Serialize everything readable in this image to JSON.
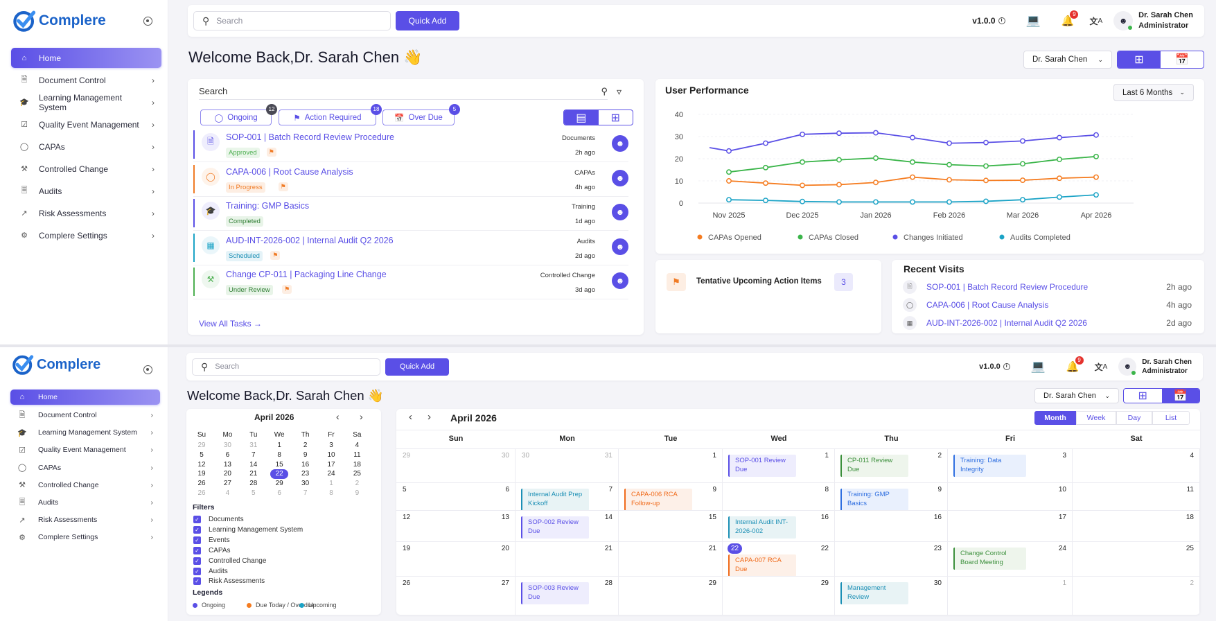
{
  "app": {
    "name": "Complere",
    "brand_color": "#1b63c9",
    "accent": "#5a4fe6"
  },
  "header": {
    "search_placeholder": "Search",
    "quick_add": "Quick Add",
    "version": "v1.0.0",
    "notifications": "9",
    "user_name": "Dr. Sarah Chen",
    "user_role": "Administrator",
    "icons": [
      "search-icon",
      "info-icon",
      "laptop-icon",
      "bell-icon",
      "translate-icon",
      "user-icon"
    ]
  },
  "sidebar": {
    "items": [
      {
        "label": "Home",
        "icon": "home-icon",
        "active": true
      },
      {
        "label": "Document Control",
        "icon": "document-icon"
      },
      {
        "label": "Learning Management System",
        "icon": "graduation-cap-icon"
      },
      {
        "label": "Quality Event Management",
        "icon": "calendar-check-icon"
      },
      {
        "label": "CAPAs",
        "icon": "shield-icon"
      },
      {
        "label": "Controlled Change",
        "icon": "tools-icon"
      },
      {
        "label": "Audits",
        "icon": "audit-file-icon"
      },
      {
        "label": "Risk Assessments",
        "icon": "chart-icon"
      },
      {
        "label": "Complere Settings",
        "icon": "gear-icon"
      }
    ]
  },
  "welcome": "Welcome Back,Dr. Sarah Chen 👋",
  "user_select": "Dr. Sarah Chen",
  "tasks": {
    "search_label": "Search",
    "chips": [
      {
        "label": "Ongoing",
        "count": "12",
        "color": "#4a4a55"
      },
      {
        "label": "Action Required",
        "count": "18",
        "color": "#5a4fe6"
      },
      {
        "label": "Over Due",
        "count": "5",
        "color": "#5a4fe6"
      }
    ],
    "rows": [
      {
        "title": "SOP-001 | Batch Record Review Procedure",
        "category": "Documents",
        "time": "2h ago",
        "status": "Approved",
        "status_color": "#4caf50",
        "status_bg": "#eaf6ea",
        "flag": true,
        "bar": "#5a4fe6",
        "icon": "document-icon"
      },
      {
        "title": "CAPA-006 | Root Cause Analysis",
        "category": "CAPAs",
        "time": "4h ago",
        "status": "In Progress",
        "status_color": "#f07b25",
        "status_bg": "#fdeee3",
        "flag": true,
        "bar": "#f07b25",
        "icon": "shield-icon"
      },
      {
        "title": "Training: GMP Basics",
        "category": "Training",
        "time": "1d ago",
        "status": "Completed",
        "status_color": "#2e7d32",
        "status_bg": "#e8f4e8",
        "flag": false,
        "bar": "#5a4fe6",
        "icon": "graduation-cap-icon"
      },
      {
        "title": "AUD-INT-2026-002 | Internal Audit Q2 2026",
        "category": "Audits",
        "time": "2d ago",
        "status": "Scheduled",
        "status_color": "#1b8fb5",
        "status_bg": "#e5f3f8",
        "flag": true,
        "bar": "#1ba3c6",
        "icon": "calendar-icon"
      },
      {
        "title": "Change CP-011 | Packaging Line Change",
        "category": "Controlled Change",
        "time": "3d ago",
        "status": "Under Review",
        "status_color": "#2e7d32",
        "status_bg": "#e8f4e8",
        "flag": true,
        "bar": "#4caf50",
        "icon": "tools-icon"
      }
    ],
    "view_all": "View All Tasks →"
  },
  "performance": {
    "title": "User Performance",
    "range": "Last 6 Months"
  },
  "chart_data": {
    "type": "line",
    "title": "User Performance",
    "x": [
      "Nov 2025",
      "",
      "Dec 2025",
      "",
      "Jan 2026",
      "",
      "Feb 2026",
      "",
      "Mar 2026",
      "",
      "Apr 2026"
    ],
    "ylim": [
      0,
      40
    ],
    "yticks": [
      0,
      10,
      20,
      30,
      40
    ],
    "grid": true,
    "legend": "bottom",
    "series": [
      {
        "name": "CAPAs Opened",
        "color": "#f57c20",
        "values": [
          10,
          9,
          8,
          8.3,
          9.3,
          11.7,
          10.5,
          10.2,
          10.3,
          11.2,
          11.7
        ]
      },
      {
        "name": "CAPAs Closed",
        "color": "#3bb54a",
        "values": [
          14,
          16,
          18.5,
          19.5,
          20.3,
          18.5,
          17.3,
          16.7,
          17.7,
          19.7,
          21
        ]
      },
      {
        "name": "Changes Initiated",
        "color": "#5a4fe6",
        "values": [
          23.5,
          27,
          31,
          31.5,
          31.7,
          29.5,
          27,
          27.3,
          28,
          29.5,
          30.7
        ]
      },
      {
        "name": "Audits Completed",
        "color": "#1ba3c6",
        "values": [
          1.5,
          1.2,
          0.7,
          0.5,
          0.5,
          0.5,
          0.5,
          0.8,
          1.5,
          2.7,
          3.7
        ]
      }
    ]
  },
  "tentative": {
    "label": "Tentative Upcoming Action Items",
    "count": "3"
  },
  "recent": {
    "title": "Recent Visits",
    "items": [
      {
        "title": "SOP-001 | Batch Record Review Procedure",
        "time": "2h ago",
        "icon": "document-icon"
      },
      {
        "title": "CAPA-006 | Root Cause Analysis",
        "time": "4h ago",
        "icon": "shield-icon"
      },
      {
        "title": "AUD-INT-2026-002 | Internal Audit Q2 2026",
        "time": "2d ago",
        "icon": "calendar-icon"
      }
    ]
  },
  "mini_calendar": {
    "title": "April 2026",
    "weekdays": [
      "Su",
      "Mo",
      "Tu",
      "We",
      "Th",
      "Fr",
      "Sa"
    ],
    "weeks": [
      [
        [
          "29",
          1
        ],
        [
          "30",
          1
        ],
        [
          "31",
          1
        ],
        [
          "1",
          0
        ],
        [
          "2",
          0
        ],
        [
          "3",
          0
        ],
        [
          "4",
          0
        ]
      ],
      [
        [
          "5",
          0
        ],
        [
          "6",
          0
        ],
        [
          "7",
          0
        ],
        [
          "8",
          0
        ],
        [
          "9",
          0
        ],
        [
          "10",
          0
        ],
        [
          "11",
          0
        ]
      ],
      [
        [
          "12",
          0
        ],
        [
          "13",
          0
        ],
        [
          "14",
          0
        ],
        [
          "15",
          0
        ],
        [
          "16",
          0
        ],
        [
          "17",
          0
        ],
        [
          "18",
          0
        ]
      ],
      [
        [
          "19",
          0
        ],
        [
          "20",
          0
        ],
        [
          "21",
          0
        ],
        [
          "22",
          2
        ],
        [
          "23",
          0
        ],
        [
          "24",
          0
        ],
        [
          "25",
          0
        ]
      ],
      [
        [
          "26",
          0
        ],
        [
          "27",
          0
        ],
        [
          "28",
          0
        ],
        [
          "29",
          0
        ],
        [
          "30",
          0
        ],
        [
          "1",
          1
        ],
        [
          "2",
          1
        ]
      ],
      [
        [
          "26",
          1
        ],
        [
          "4",
          1
        ],
        [
          "5",
          1
        ],
        [
          "6",
          1
        ],
        [
          "7",
          1
        ],
        [
          "8",
          1
        ],
        [
          "9",
          1
        ]
      ]
    ],
    "filters_title": "Filters",
    "filters": [
      "Documents",
      "Learning Management System",
      "Events",
      "CAPAs",
      "Controlled Change",
      "Audits",
      "Risk Assessments"
    ],
    "legends_title": "Legends",
    "legends": [
      {
        "label": "Ongoing",
        "color": "#5a4fe6"
      },
      {
        "label": "Due Today / Overdue",
        "color": "#f57c20"
      },
      {
        "label": "Upcoming",
        "color": "#1ba3c6"
      }
    ]
  },
  "calendar": {
    "title": "April 2026",
    "views": [
      "Month",
      "Week",
      "Day",
      "List"
    ],
    "active_view": "Month",
    "days": [
      "Sun",
      "Mon",
      "Tue",
      "Wed",
      "Thu",
      "Fri",
      "Sat"
    ],
    "event_styles": {
      "purple": {
        "fg": "#5a4fe6",
        "bg": "#eeedfd"
      },
      "green": {
        "fg": "#3b8f3b",
        "bg": "#eef5ec"
      },
      "blue": {
        "fg": "#2f6fe0",
        "bg": "#e9f0fd"
      },
      "teal": {
        "fg": "#1b8fb5",
        "bg": "#e8f3f5"
      },
      "orange": {
        "fg": "#f06a1a",
        "bg": "#fdf0e8"
      }
    },
    "weeks": [
      [
        {
          "l": "29",
          "r": "30",
          "m": true
        },
        {
          "l": "30",
          "r": "31",
          "m": true
        },
        {
          "r": "1"
        },
        {
          "r": "1",
          "ev": [
            "SOP-001 Review Due",
            "purple"
          ]
        },
        {
          "r": "2",
          "ev": [
            "CP-011 Review Due",
            "green"
          ]
        },
        {
          "r": "3",
          "ev": [
            "Training: Data Integrity",
            "blue"
          ]
        },
        {
          "r": "4"
        }
      ],
      [
        {
          "l": "5",
          "r": "6"
        },
        {
          "r": "7",
          "ev": [
            "Internal Audit Prep Kickoff",
            "teal"
          ]
        },
        {
          "r": "9",
          "ev": [
            "CAPA-006 RCA Follow-up",
            "orange"
          ]
        },
        {
          "r": "8"
        },
        {
          "r": "9",
          "ev": [
            "Training: GMP Basics",
            "blue"
          ]
        },
        {
          "r": "10"
        },
        {
          "r": "11"
        }
      ],
      [
        {
          "l": "12",
          "r": "13"
        },
        {
          "r": "14",
          "ev": [
            "SOP-002 Review Due",
            "purple"
          ]
        },
        {
          "r": "15"
        },
        {
          "r": "16",
          "ev": [
            "Internal Audit INT-2026-002",
            "teal"
          ]
        },
        {
          "r": "16"
        },
        {
          "r": "17"
        },
        {
          "r": "18"
        }
      ],
      [
        {
          "l": "19",
          "r": "20"
        },
        {
          "r": "21"
        },
        {
          "r": "21"
        },
        {
          "b": "22",
          "r": "22",
          "ev": [
            "CAPA-007 RCA Due",
            "orange"
          ]
        },
        {
          "r": "23"
        },
        {
          "r": "24",
          "ev": [
            "Change Control Board Meeting",
            "green"
          ]
        },
        {
          "r": "25"
        }
      ],
      [
        {
          "l": "26",
          "r": "27"
        },
        {
          "r": "28",
          "ev": [
            "SOP-003 Review Due",
            "purple"
          ]
        },
        {
          "r": "29"
        },
        {
          "r": "29"
        },
        {
          "r": "30",
          "ev": [
            "Management Review",
            "teal"
          ]
        },
        {
          "r": "1",
          "m": true
        },
        {
          "r": "2",
          "m": true
        }
      ]
    ]
  }
}
